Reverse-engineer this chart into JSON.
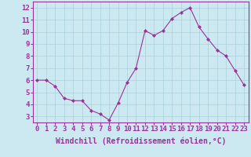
{
  "x": [
    0,
    1,
    2,
    3,
    4,
    5,
    6,
    7,
    8,
    9,
    10,
    11,
    12,
    13,
    14,
    15,
    16,
    17,
    18,
    19,
    20,
    21,
    22,
    23
  ],
  "y": [
    6.0,
    6.0,
    5.5,
    4.5,
    4.3,
    4.3,
    3.5,
    3.2,
    2.7,
    4.1,
    5.8,
    7.0,
    10.1,
    9.7,
    10.1,
    11.1,
    11.6,
    12.0,
    10.4,
    9.4,
    8.5,
    8.0,
    6.8,
    5.6
  ],
  "line_color": "#990099",
  "marker": "D",
  "marker_size": 2,
  "xlabel": "Windchill (Refroidissement éolien,°C)",
  "xlim": [
    -0.5,
    23.5
  ],
  "ylim": [
    2.5,
    12.5
  ],
  "yticks": [
    3,
    4,
    5,
    6,
    7,
    8,
    9,
    10,
    11,
    12
  ],
  "xticks": [
    0,
    1,
    2,
    3,
    4,
    5,
    6,
    7,
    8,
    9,
    10,
    11,
    12,
    13,
    14,
    15,
    16,
    17,
    18,
    19,
    20,
    21,
    22,
    23
  ],
  "background_color": "#cce8f0",
  "grid_color": "#aad0dd",
  "line_purple": "#993399",
  "tick_fontsize": 6.5,
  "xlabel_fontsize": 7
}
